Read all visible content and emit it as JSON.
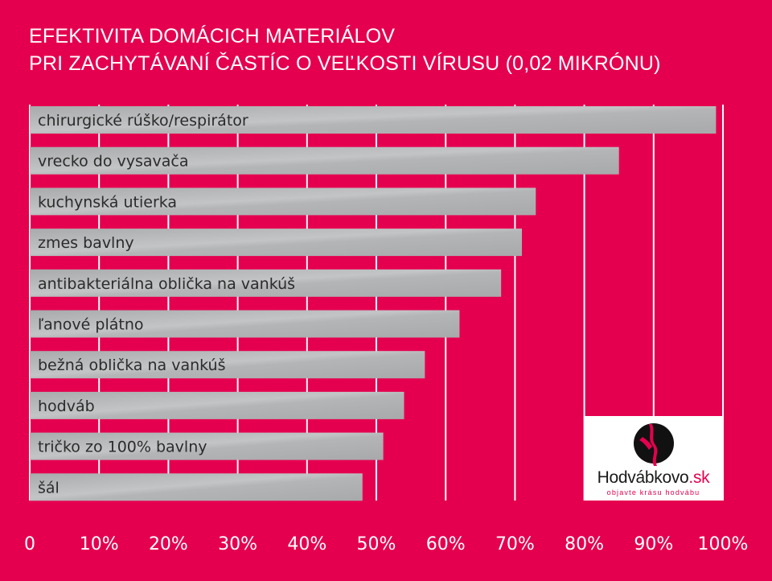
{
  "chart_data": {
    "type": "bar",
    "orientation": "horizontal",
    "title_line1": "EFEKTIVITA DOMÁCICH MATERIÁLOV",
    "title_line2": "PRI ZACHYTÁVANÍ ČASTÍC O VEĽKOSTI VÍRUSU (0,02 MIKRÓNU)",
    "categories": [
      "chirurgické rúško/respirátor",
      "vrecko do vysavača",
      "kuchynská utierka",
      "zmes bavlny",
      "antibakteriálna oblička na vankúš",
      "ľanové plátno",
      "bežná oblička na vankúš",
      "hodváb",
      "tričko zo 100% bavlny",
      "šál"
    ],
    "values": [
      99,
      85,
      73,
      71,
      68,
      62,
      57,
      54,
      51,
      48
    ],
    "xlim": [
      0,
      100
    ],
    "x_ticks": [
      "0",
      "10%",
      "20%",
      "30%",
      "40%",
      "50%",
      "60%",
      "70%",
      "80%",
      "90%",
      "100%"
    ],
    "grid": true,
    "bar_color": "#b2b3b5",
    "background_color": "#e5004f"
  },
  "logo": {
    "name": "Hodvábkovo",
    "tld": ".sk",
    "tagline": "objavte krásu hodvábu"
  }
}
